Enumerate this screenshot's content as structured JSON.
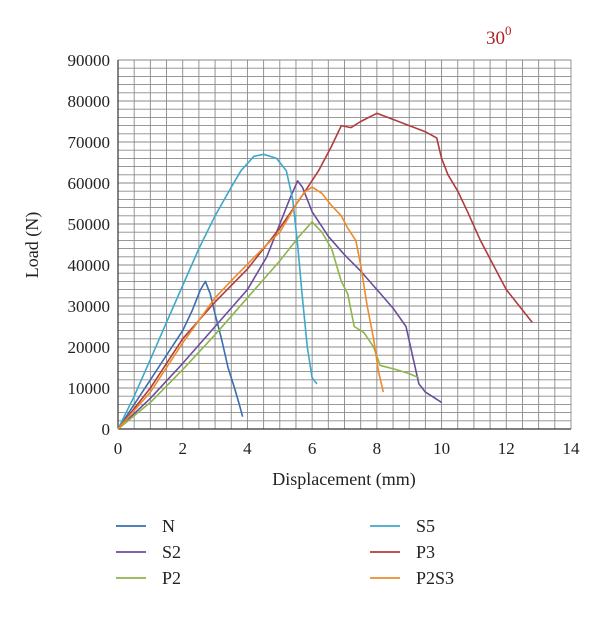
{
  "chart_data": {
    "type": "line",
    "title": "",
    "annotation": {
      "base": "30",
      "sup": "0",
      "color": "#b22222"
    },
    "xlabel": "Displacement (mm)",
    "ylabel": "Load (N)",
    "xlim": [
      0,
      14
    ],
    "ylim": [
      0,
      90000
    ],
    "xticks": [
      0,
      2,
      4,
      6,
      8,
      10,
      12,
      14
    ],
    "yticks": [
      0,
      10000,
      20000,
      30000,
      40000,
      50000,
      60000,
      70000,
      80000,
      90000
    ],
    "grid": true,
    "legend_placement": "bottom",
    "series": [
      {
        "name": "N",
        "color": "#3a6eb0",
        "points": [
          [
            0,
            0
          ],
          [
            0.5,
            6000
          ],
          [
            1,
            12000
          ],
          [
            1.5,
            18000
          ],
          [
            2,
            24000
          ],
          [
            2.3,
            29000
          ],
          [
            2.55,
            34000
          ],
          [
            2.7,
            36000
          ],
          [
            2.85,
            33000
          ],
          [
            3,
            28000
          ],
          [
            3.2,
            22000
          ],
          [
            3.4,
            15000
          ],
          [
            3.6,
            10000
          ],
          [
            3.75,
            6000
          ],
          [
            3.85,
            3000
          ]
        ]
      },
      {
        "name": "S2",
        "color": "#6b4d9e",
        "points": [
          [
            0,
            0
          ],
          [
            1,
            7500
          ],
          [
            2,
            16000
          ],
          [
            3,
            25000
          ],
          [
            4,
            34000
          ],
          [
            4.6,
            42000
          ],
          [
            5,
            50000
          ],
          [
            5.3,
            56000
          ],
          [
            5.55,
            60500
          ],
          [
            5.7,
            59000
          ],
          [
            6,
            53000
          ],
          [
            6.5,
            47000
          ],
          [
            7,
            42500
          ],
          [
            7.5,
            38500
          ],
          [
            8,
            34000
          ],
          [
            8.5,
            29500
          ],
          [
            8.9,
            25000
          ],
          [
            9.1,
            18000
          ],
          [
            9.3,
            11000
          ],
          [
            9.5,
            9000
          ],
          [
            10,
            6500
          ]
        ]
      },
      {
        "name": "P2",
        "color": "#8db64a",
        "points": [
          [
            0,
            0
          ],
          [
            1,
            6500
          ],
          [
            2,
            14500
          ],
          [
            3,
            23000
          ],
          [
            4,
            32000
          ],
          [
            5,
            41000
          ],
          [
            5.6,
            47000
          ],
          [
            6.0,
            50500
          ],
          [
            6.3,
            48000
          ],
          [
            6.6,
            44000
          ],
          [
            6.9,
            36000
          ],
          [
            7.1,
            33000
          ],
          [
            7.3,
            25000
          ],
          [
            7.6,
            23500
          ],
          [
            7.9,
            20000
          ],
          [
            8.1,
            15500
          ],
          [
            8.6,
            14500
          ],
          [
            9.0,
            13500
          ],
          [
            9.3,
            12500
          ]
        ]
      },
      {
        "name": "S5",
        "color": "#3ea9c9",
        "points": [
          [
            0,
            0
          ],
          [
            0.5,
            8000
          ],
          [
            1,
            17000
          ],
          [
            1.5,
            26000
          ],
          [
            2,
            35000
          ],
          [
            2.5,
            44000
          ],
          [
            3,
            52000
          ],
          [
            3.5,
            59000
          ],
          [
            3.8,
            63000
          ],
          [
            4.2,
            66500
          ],
          [
            4.5,
            67000
          ],
          [
            4.9,
            66000
          ],
          [
            5.2,
            63000
          ],
          [
            5.4,
            56000
          ],
          [
            5.55,
            45000
          ],
          [
            5.7,
            32000
          ],
          [
            5.85,
            20000
          ],
          [
            6.0,
            12500
          ],
          [
            6.15,
            11000
          ]
        ]
      },
      {
        "name": "P3",
        "color": "#b23b3b",
        "points": [
          [
            0,
            0
          ],
          [
            1,
            10000
          ],
          [
            2,
            22000
          ],
          [
            3,
            31000
          ],
          [
            4,
            39000
          ],
          [
            5,
            49000
          ],
          [
            5.7,
            57000
          ],
          [
            6.2,
            63000
          ],
          [
            6.6,
            69000
          ],
          [
            6.9,
            74000
          ],
          [
            7.2,
            73500
          ],
          [
            7.5,
            75000
          ],
          [
            8.0,
            77000
          ],
          [
            8.5,
            75500
          ],
          [
            9.0,
            74000
          ],
          [
            9.5,
            72500
          ],
          [
            9.85,
            71000
          ],
          [
            10.0,
            66000
          ],
          [
            10.2,
            62000
          ],
          [
            10.5,
            58000
          ],
          [
            10.8,
            53000
          ],
          [
            11.2,
            46000
          ],
          [
            11.6,
            40000
          ],
          [
            12.0,
            34000
          ],
          [
            12.3,
            31000
          ],
          [
            12.8,
            26000
          ]
        ]
      },
      {
        "name": "P2S3",
        "color": "#ee8a2a",
        "points": [
          [
            0,
            0
          ],
          [
            1,
            9000
          ],
          [
            2,
            21000
          ],
          [
            3,
            32000
          ],
          [
            3.6,
            37000
          ],
          [
            4.1,
            41000
          ],
          [
            4.6,
            45000
          ],
          [
            5.0,
            48000
          ],
          [
            5.3,
            52000
          ],
          [
            5.6,
            56000
          ],
          [
            5.8,
            58000
          ],
          [
            6.0,
            59000
          ],
          [
            6.3,
            57500
          ],
          [
            6.6,
            54500
          ],
          [
            6.9,
            52000
          ],
          [
            7.1,
            49000
          ],
          [
            7.35,
            46000
          ],
          [
            7.5,
            40000
          ],
          [
            7.7,
            30000
          ],
          [
            7.9,
            22000
          ],
          [
            8.05,
            14000
          ],
          [
            8.2,
            9000
          ]
        ]
      }
    ]
  }
}
